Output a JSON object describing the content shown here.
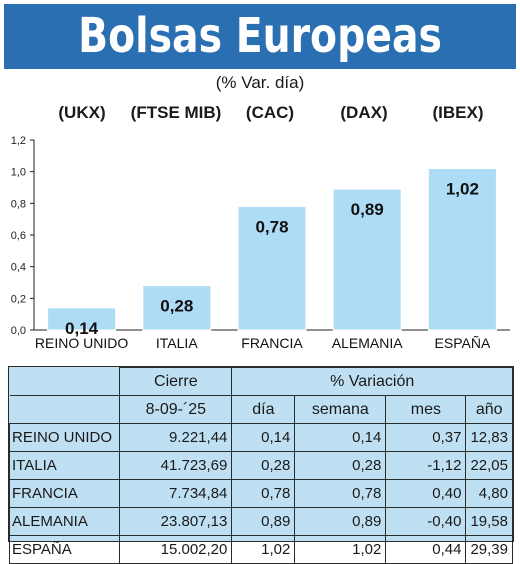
{
  "title": "Bolsas Europeas",
  "subtitle": "(% Var. día)",
  "index_labels": [
    "(UKX)",
    "(FTSE MIB)",
    "(CAC)",
    "(DAX)",
    "(IBEX)"
  ],
  "colors": {
    "header": "#2b6fb3",
    "bar": "#aedbf5",
    "table_bg": "#bfe0f3"
  },
  "chart_data": {
    "type": "bar",
    "categories": [
      "REINO UNIDO",
      "ITALIA",
      "FRANCIA",
      "ALEMANIA",
      "ESPAÑA"
    ],
    "values": [
      0.14,
      0.28,
      0.78,
      0.89,
      1.02
    ],
    "value_labels": [
      "0,14",
      "0,28",
      "0,78",
      "0,89",
      "1,02"
    ],
    "ylim": [
      0,
      1.2
    ],
    "yticks": [
      "0,0",
      "0,2",
      "0,4",
      "0,6",
      "0,8",
      "1,0",
      "1,2"
    ],
    "grid": false
  },
  "table": {
    "group_headers": {
      "cierre": "Cierre",
      "variacion": "% Variación"
    },
    "subheaders": [
      "8-09-´25",
      "día",
      "semana",
      "mes",
      "año"
    ],
    "rows": [
      {
        "name": "REINO UNIDO",
        "cierre": "9.221,44",
        "dia": "0,14",
        "semana": "0,14",
        "mes": "0,37",
        "anio": "12,83"
      },
      {
        "name": "ITALIA",
        "cierre": "41.723,69",
        "dia": "0,28",
        "semana": "0,28",
        "mes": "-1,12",
        "anio": "22,05"
      },
      {
        "name": "FRANCIA",
        "cierre": "7.734,84",
        "dia": "0,78",
        "semana": "0,78",
        "mes": "0,40",
        "anio": "4,80"
      },
      {
        "name": "ALEMANIA",
        "cierre": "23.807,13",
        "dia": "0,89",
        "semana": "0,89",
        "mes": "-0,40",
        "anio": "19,58"
      },
      {
        "name": "ESPAÑA",
        "cierre": "15.002,20",
        "dia": "1,02",
        "semana": "1,02",
        "mes": "0,44",
        "anio": "29,39"
      }
    ]
  }
}
